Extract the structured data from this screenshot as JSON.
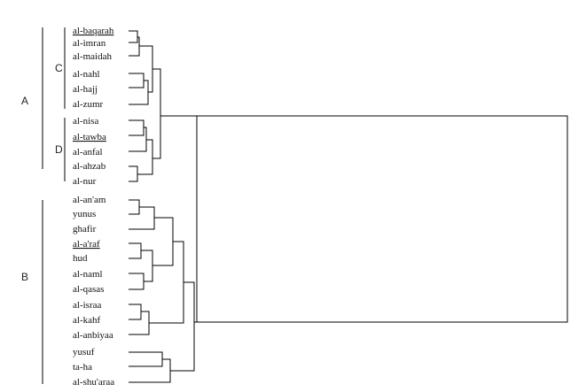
{
  "groups": [
    {
      "id": "A",
      "label": "A"
    },
    {
      "id": "B",
      "label": "B"
    },
    {
      "id": "C",
      "label": "C"
    },
    {
      "id": "D",
      "label": "D"
    }
  ],
  "leaves": [
    {
      "label": "al-baqarah",
      "underline": true
    },
    {
      "label": "al-imran",
      "underline": false
    },
    {
      "label": "al-maidah",
      "underline": false
    },
    {
      "label": "al-nahl",
      "underline": false
    },
    {
      "label": "al-hajj",
      "underline": false
    },
    {
      "label": "al-zumr",
      "underline": false
    },
    {
      "label": "al-nisa",
      "underline": false
    },
    {
      "label": "al-tawba",
      "underline": true
    },
    {
      "label": "al-anfal",
      "underline": false
    },
    {
      "label": "al-ahzab",
      "underline": false
    },
    {
      "label": "al-nur",
      "underline": false
    },
    {
      "label": "al-an'am",
      "underline": false
    },
    {
      "label": "yunus",
      "underline": false
    },
    {
      "label": "ghafir",
      "underline": false
    },
    {
      "label": "al-a'raf",
      "underline": true
    },
    {
      "label": "hud",
      "underline": false
    },
    {
      "label": "al-naml",
      "underline": false
    },
    {
      "label": "al-qasas",
      "underline": false
    },
    {
      "label": "al-israa",
      "underline": false
    },
    {
      "label": "al-kahf",
      "underline": false
    },
    {
      "label": "al-anbiyaa",
      "underline": false
    },
    {
      "label": "yusuf",
      "underline": false
    },
    {
      "label": "ta-ha",
      "underline": false
    },
    {
      "label": "al-shu'araa",
      "underline": false
    }
  ]
}
